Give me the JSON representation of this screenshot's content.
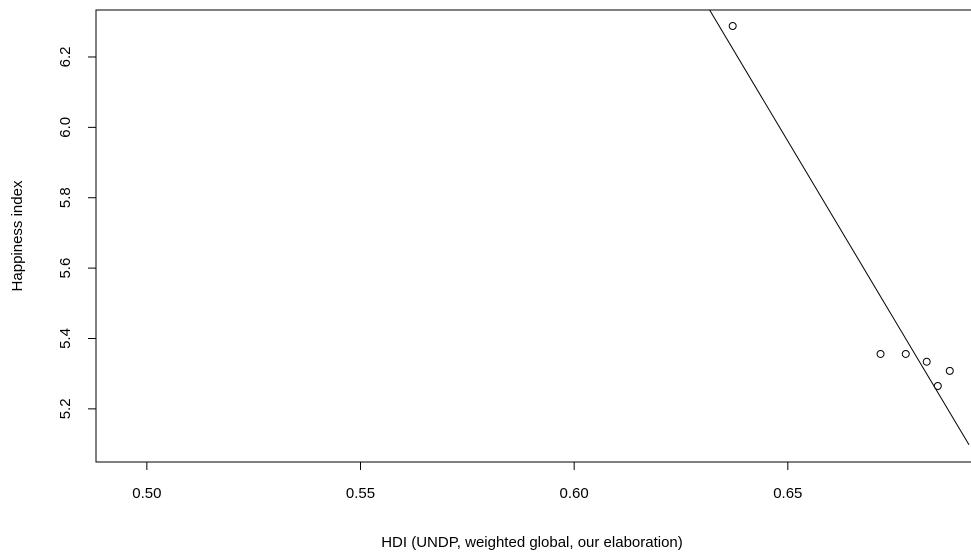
{
  "chart_data": {
    "type": "scatter",
    "x_label": "HDI (UNDP, weighted global, our elaboration)",
    "y_label": "Happiness index",
    "x": [
      0.6371,
      0.6717,
      0.6776,
      0.6825,
      0.6851,
      0.6879
    ],
    "values": [
      6.288,
      5.356,
      5.356,
      5.334,
      5.265,
      5.308
    ],
    "color": "#000000",
    "fit": {
      "x": [
        0.6317,
        0.6924
      ],
      "values": [
        6.3335,
        5.098
      ]
    },
    "xlim": [
      0.4881,
      0.6924
    ],
    "ylim": [
      5.049,
      6.3335
    ],
    "xticks": [
      {
        "value": 0.5,
        "label": "0.50"
      },
      {
        "value": 0.55,
        "label": "0.55"
      },
      {
        "value": 0.6,
        "label": "0.60"
      },
      {
        "value": 0.65,
        "label": "0.65"
      }
    ],
    "yticks": [
      5.2,
      5.4,
      5.6,
      5.8,
      {
        "value": 6.0,
        "label": "6.0"
      },
      6.2
    ]
  }
}
